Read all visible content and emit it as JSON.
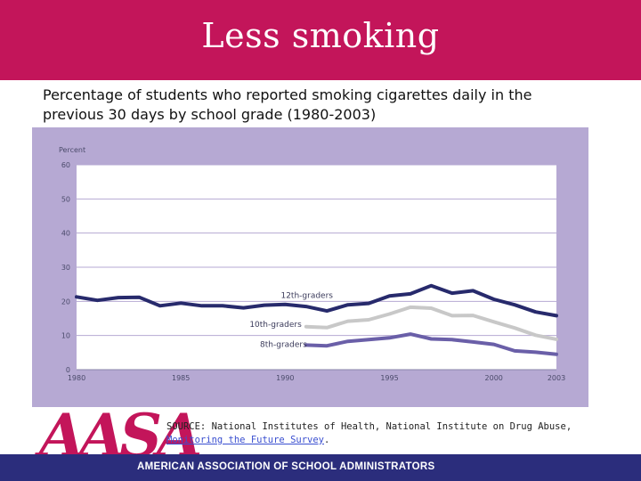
{
  "slide": {
    "title": "Less smoking",
    "subtitle": "Percentage of students who reported smoking cigarettes daily in the previous 30 days by school grade (1980-2003)",
    "source_prefix": "SOURCE: National Institutes of Health, National Institute on Drug Abuse, ",
    "source_link": "Monitoring the Future Survey",
    "source_suffix": ".",
    "logo_text": "AASA",
    "org_name": "AMERICAN ASSOCIATION OF SCHOOL ADMINISTRATORS"
  },
  "colors": {
    "title_bar": "#c3155a",
    "panel": "#b6a9d3",
    "plot_bg": "#ffffff",
    "series_12th": "#272a6c",
    "series_10th": "#c8c8c8",
    "series_8th": "#6a5fa8",
    "footer": "#2b2d7c"
  },
  "chart_data": {
    "type": "line",
    "title": "",
    "xlabel": "",
    "ylabel": "Percent",
    "xlim": [
      1980,
      2003
    ],
    "ylim": [
      0,
      60
    ],
    "x_ticks": [
      1980,
      1985,
      1990,
      1995,
      2000,
      2003
    ],
    "y_ticks": [
      0,
      10,
      20,
      30,
      40,
      50,
      60
    ],
    "grid": true,
    "legend": "inline labels",
    "series": [
      {
        "name": "12th-graders",
        "x": [
          1980,
          1981,
          1982,
          1983,
          1984,
          1985,
          1986,
          1987,
          1988,
          1989,
          1990,
          1991,
          1992,
          1993,
          1994,
          1995,
          1996,
          1997,
          1998,
          1999,
          2000,
          2001,
          2002,
          2003
        ],
        "y": [
          21.3,
          20.3,
          21.1,
          21.2,
          18.7,
          19.5,
          18.7,
          18.7,
          18.1,
          18.9,
          19.1,
          18.5,
          17.2,
          19.0,
          19.4,
          21.6,
          22.2,
          24.6,
          22.4,
          23.1,
          20.6,
          19.0,
          16.9,
          15.8
        ]
      },
      {
        "name": "10th-graders",
        "x": [
          1991,
          1992,
          1993,
          1994,
          1995,
          1996,
          1997,
          1998,
          1999,
          2000,
          2001,
          2002,
          2003
        ],
        "y": [
          12.6,
          12.3,
          14.2,
          14.6,
          16.3,
          18.3,
          18.0,
          15.8,
          15.9,
          14.0,
          12.2,
          10.1,
          8.9
        ]
      },
      {
        "name": "8th-graders",
        "x": [
          1991,
          1992,
          1993,
          1994,
          1995,
          1996,
          1997,
          1998,
          1999,
          2000,
          2001,
          2002,
          2003
        ],
        "y": [
          7.2,
          7.0,
          8.3,
          8.8,
          9.3,
          10.4,
          9.0,
          8.8,
          8.1,
          7.4,
          5.5,
          5.1,
          4.5
        ]
      }
    ]
  }
}
